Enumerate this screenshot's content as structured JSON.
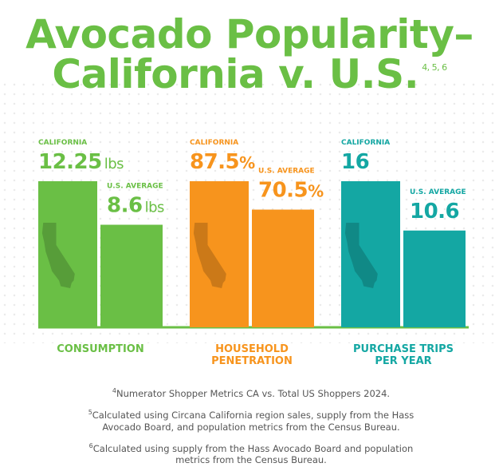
{
  "title": {
    "line1": "Avocado Popularity–",
    "line2": "California v. U.S.",
    "refs": "4, 5, 6"
  },
  "colors": {
    "green": "#6abf45",
    "orange": "#f7941d",
    "teal": "#14a7a3",
    "baseline": "#6abf45"
  },
  "chart_data": [
    {
      "type": "bar",
      "category": "CONSUMPTION",
      "color": "#6abf45",
      "series": [
        {
          "name": "CALIFORNIA",
          "value": 12.25,
          "label": "12.25",
          "unit": "lbs"
        },
        {
          "name": "U.S. AVERAGE",
          "value": 8.6,
          "label": "8.6",
          "unit": "lbs"
        }
      ]
    },
    {
      "type": "bar",
      "category": "HOUSEHOLD PENETRATION",
      "category_lines": [
        "HOUSEHOLD",
        "PENETRATION"
      ],
      "color": "#f7941d",
      "series": [
        {
          "name": "CALIFORNIA",
          "value": 87.5,
          "label": "87.5",
          "unit": "%"
        },
        {
          "name": "U.S. AVERAGE",
          "value": 70.5,
          "label": "70.5",
          "unit": "%"
        }
      ]
    },
    {
      "type": "bar",
      "category": "PURCHASE TRIPS PER YEAR",
      "category_lines": [
        "PURCHASE TRIPS",
        "PER YEAR"
      ],
      "color": "#14a7a3",
      "series": [
        {
          "name": "CALIFORNIA",
          "value": 16,
          "label": "16",
          "unit": ""
        },
        {
          "name": "U.S. AVERAGE",
          "value": 10.6,
          "label": "10.6",
          "unit": ""
        }
      ]
    }
  ],
  "footnotes": [
    {
      "ref": "4",
      "text": "Numerator Shopper Metrics CA vs. Total US Shoppers 2024."
    },
    {
      "ref": "5",
      "text": "Calculated using Circana California region sales, supply from the Hass Avocado Board, and population metrics from the Census Bureau."
    },
    {
      "ref": "6",
      "text": "Calculated using supply from the Hass Avocado Board and population metrics from the Census Bureau."
    }
  ]
}
